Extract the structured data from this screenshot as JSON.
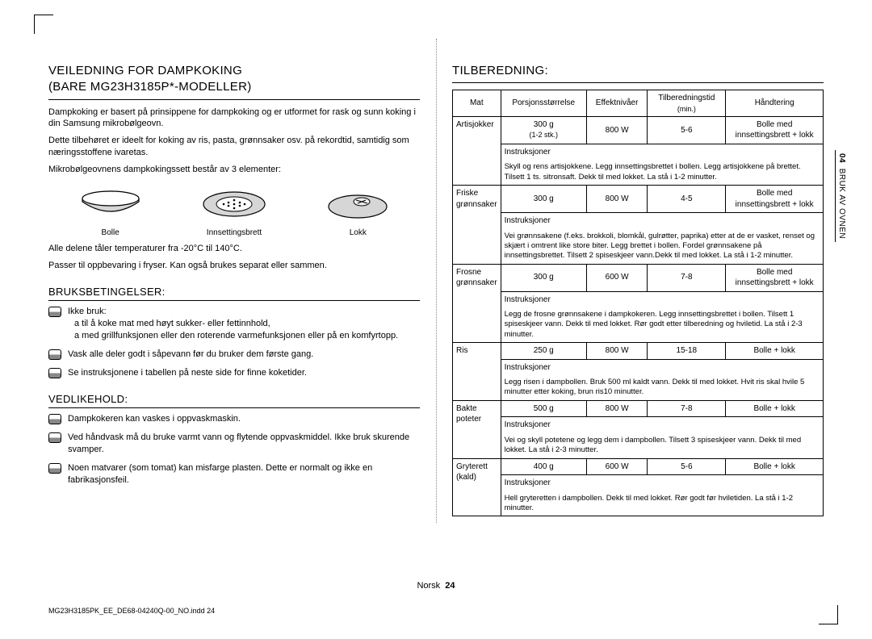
{
  "leftCol": {
    "title_line1": "VEILEDNING FOR DAMPKOKING",
    "title_line2": "(BARE MG23H3185P*-MODELLER)",
    "intro_p1": "Dampkoking er basert på prinsippene for dampkoking og er utformet for rask og sunn koking i din Samsung mikrobølgeovn.",
    "intro_p2": "Dette tilbehøret er ideelt for koking av ris, pasta, grønnsaker osv. på rekordtid, samtidig som næringsstoffene ivaretas.",
    "intro_p3": "Mikrobølgeovnens dampkokingssett består av 3 elementer:",
    "parts": [
      "Bolle",
      "Innsettingsbrett",
      "Lokk"
    ],
    "temp_note": "Alle delene tåler temperaturer fra -20°C til 140°C.",
    "temp_note2": "Passer til oppbevaring i fryser. Kan også brukes separat eller sammen.",
    "sec_bruks_title": "BRUKSBETINGELSER:",
    "bruks_items": [
      {
        "lead": "Ikke bruk:",
        "lines": [
          "a til å koke mat med høyt sukker- eller fettinnhold,",
          "a med grillfunksjonen eller den roterende varmefunksjonen eller på en komfyrtopp."
        ]
      },
      {
        "text": "Vask alle deler godt i såpevann før du bruker dem første gang."
      },
      {
        "text": "Se instruksjonene i tabellen på neste side for finne koketider."
      }
    ],
    "sec_vedl_title": "VEDLIKEHOLD:",
    "vedl_items": [
      "Dampkokeren kan vaskes i oppvaskmaskin.",
      "Ved håndvask må du bruke varmt vann og flytende oppvaskmiddel. Ikke bruk skurende svamper.",
      "Noen matvarer (som tomat) kan misfarge plasten. Dette er normalt og ikke en fabrikasjonsfeil."
    ]
  },
  "rightCol": {
    "title": "TILBEREDNING:",
    "headers": [
      "Mat",
      "Porsjonsstørrelse",
      "Effektnivåer",
      "Tilberedningstid",
      "Håndtering"
    ],
    "header_sub": "(min.)",
    "instr_label": "Instruksjoner",
    "rows": [
      {
        "food": "Artisjokker",
        "portion": "300 g",
        "portion_sub": "(1-2 stk.)",
        "power": "800 W",
        "time": "5-6",
        "handling": "Bolle med innsettingsbrett + lokk",
        "instr": "Skyll og rens artisjokkene. Legg innsettingsbrettet i bollen. Legg artisjokkene på brettet. Tilsett 1 ts. sitronsaft. Dekk til med lokket. La stå i 1-2 minutter."
      },
      {
        "food": "Friske grønnsaker",
        "portion": "300 g",
        "power": "800 W",
        "time": "4-5",
        "handling": "Bolle med innsettingsbrett + lokk",
        "instr": "Vei grønnsakene (f.eks. brokkoli, blomkål, gulrøtter, paprika) etter at de er vasket, renset og skjært i omtrent like store biter. Legg brettet i bollen. Fordel grønnsakene på innsettingsbrettet. Tilsett 2 spiseskjeer vann.Dekk til med lokket. La stå i 1-2 minutter."
      },
      {
        "food": "Frosne grønnsaker",
        "portion": "300 g",
        "power": "600 W",
        "time": "7-8",
        "handling": "Bolle med innsettingsbrett + lokk",
        "instr": "Legg de frosne grønnsakene i dampkokeren. Legg innsettingsbrettet i bollen. Tilsett 1 spiseskjeer vann. Dekk til med lokket. Rør godt etter tilberedning og hviletid. La stå i 2-3 minutter."
      },
      {
        "food": "Ris",
        "portion": "250 g",
        "power": "800 W",
        "time": "15-18",
        "handling": "Bolle + lokk",
        "instr": "Legg risen i dampbollen. Bruk 500 ml kaldt vann. Dekk til med lokket. Hvit ris skal hvile 5 minutter etter koking, brun ris10 minutter."
      },
      {
        "food": "Bakte poteter",
        "portion": "500 g",
        "power": "800 W",
        "time": "7-8",
        "handling": "Bolle + lokk",
        "instr": "Vei og skyll potetene og legg dem i dampbollen. Tilsett 3 spiseskjeer vann. Dekk til med lokket. La stå i 2-3 minutter."
      },
      {
        "food": "Gryterett (kald)",
        "portion": "400 g",
        "power": "600 W",
        "time": "5-6",
        "handling": "Bolle + lokk",
        "instr": "Hell gryteretten i dampbollen. Dekk til med lokket. Rør godt før hviletiden. La stå i 1-2 minutter."
      }
    ]
  },
  "sideTab": {
    "num": "04",
    "label": "BRUK AV OVNEN"
  },
  "footer": {
    "lang": "Norsk",
    "page": "24",
    "docref": "MG23H3185PK_EE_DE68-04240Q-00_NO.indd   24"
  }
}
